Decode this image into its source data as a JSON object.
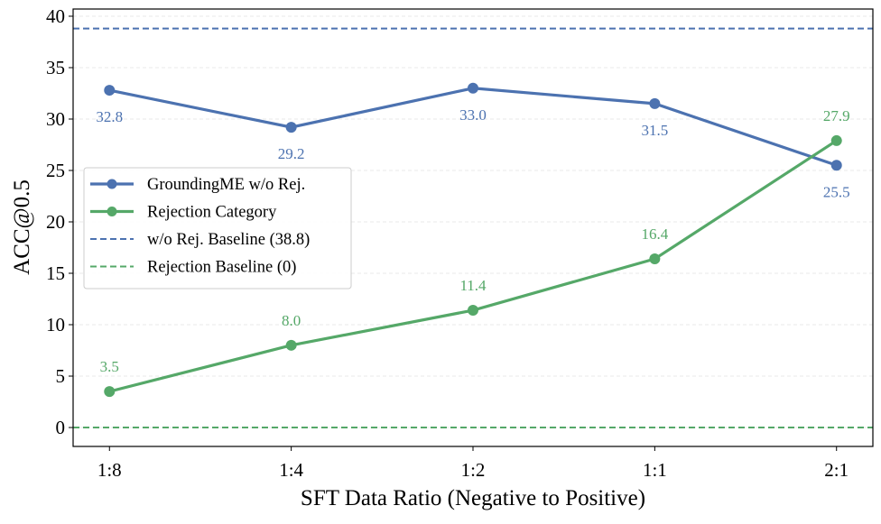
{
  "chart_data": {
    "type": "line",
    "title": "",
    "xlabel": "SFT Data Ratio (Negative to Positive)",
    "ylabel": "ACC@0.5",
    "categories": [
      "1:8",
      "1:4",
      "1:2",
      "1:1",
      "2:1"
    ],
    "ylim": [
      -1.84,
      40.7
    ],
    "yticks": [
      0,
      5,
      10,
      15,
      20,
      25,
      30,
      35,
      40
    ],
    "grid": true,
    "legend_position": "center-left",
    "series": [
      {
        "name": "GroundingME w/o Rej.",
        "values": [
          32.8,
          29.2,
          33.0,
          31.5,
          25.5
        ],
        "labels": [
          "32.8",
          "29.2",
          "33.0",
          "31.5",
          "25.5"
        ],
        "color": "#4C72B0",
        "label_position": "below"
      },
      {
        "name": "Rejection Category",
        "values": [
          3.5,
          8.0,
          11.4,
          16.4,
          27.9
        ],
        "labels": [
          "3.5",
          "8.0",
          "11.4",
          "16.4",
          "27.9"
        ],
        "color": "#55A868",
        "label_position": "above"
      }
    ],
    "baselines": [
      {
        "name": "w/o Rej. Baseline (38.8)",
        "value": 38.8,
        "color": "#4C72B0",
        "style": "dashed"
      },
      {
        "name": "Rejection Baseline (0)",
        "value": 0,
        "color": "#55A868",
        "style": "dashed"
      }
    ]
  }
}
